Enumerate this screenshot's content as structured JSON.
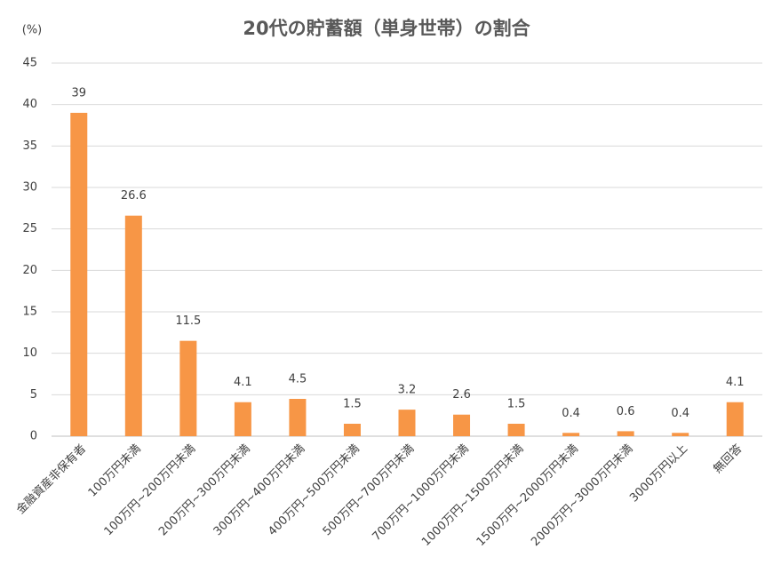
{
  "chart_data": {
    "type": "bar",
    "title": "20代の貯蓄額（単身世帯）の割合",
    "y_label": "(%)",
    "categories": [
      "金融資産非保有者",
      "100万円未満",
      "100万円~200万円未満",
      "200万円~300万円未満",
      "300万円~400万円未満",
      "400万円~500万円未満",
      "500万円~700万円未満",
      "700万円~1000万円未満",
      "1000万円~1500万円未満",
      "1500万円~2000万円未満",
      "2000万円~3000万円未満",
      "3000万円以上",
      "無回答"
    ],
    "values": [
      39,
      26.6,
      11.5,
      4.1,
      4.5,
      1.5,
      3.2,
      2.6,
      1.5,
      0.4,
      0.6,
      0.4,
      4.1
    ],
    "color": "#f79646",
    "ylim": [
      0,
      45
    ],
    "yticks": [
      0,
      5,
      10,
      15,
      20,
      25,
      30,
      35,
      40,
      45
    ],
    "grid": true
  }
}
